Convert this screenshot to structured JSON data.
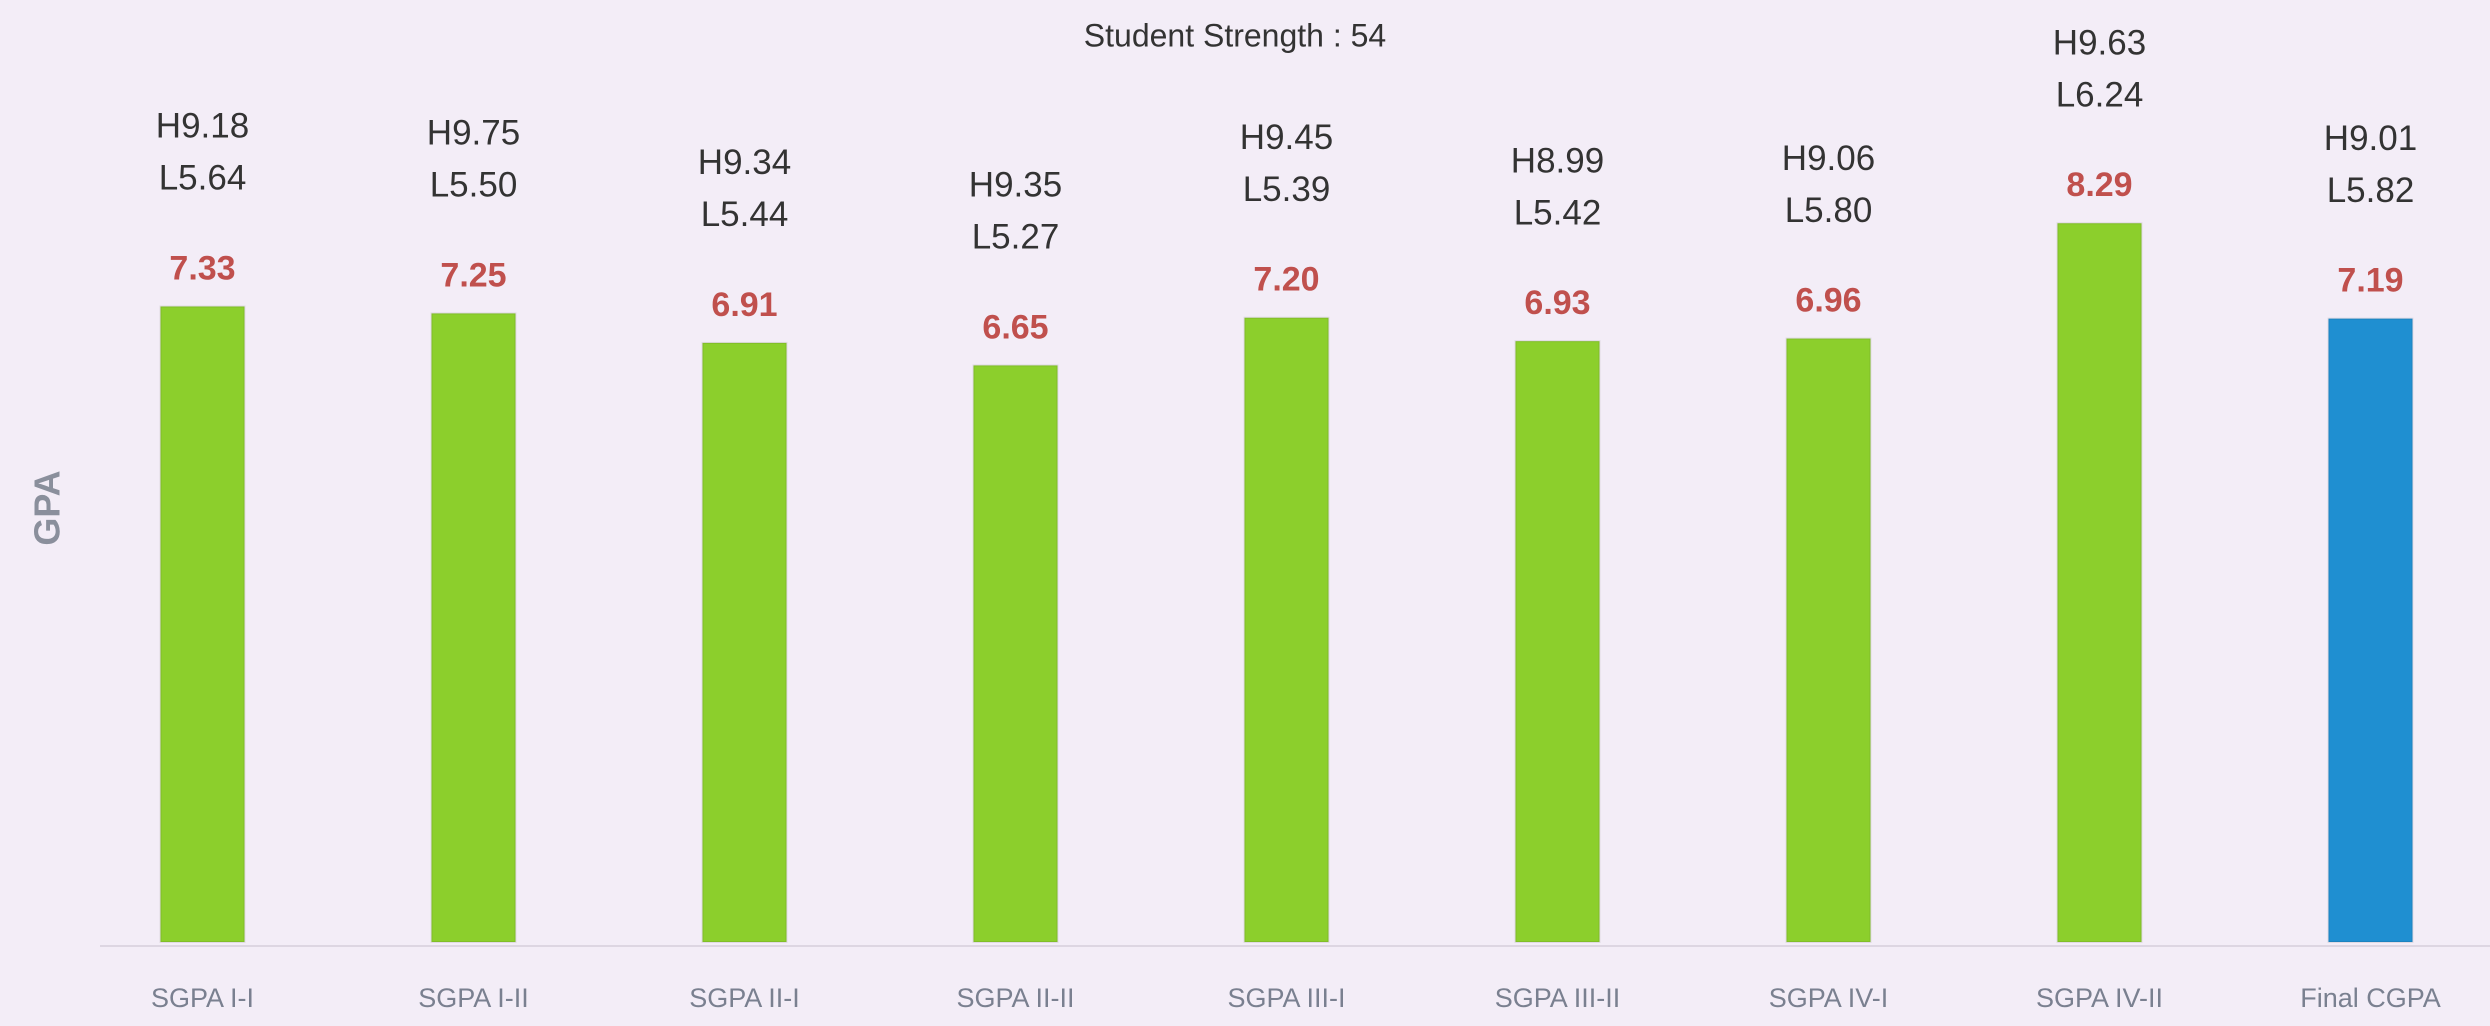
{
  "chart_data": {
    "type": "bar",
    "title": "Student Strength : 54",
    "y_label": "GPA",
    "categories": [
      "SGPA I-I",
      "SGPA I-II",
      "SGPA II-I",
      "SGPA II-II",
      "SGPA III-I",
      "SGPA III-II",
      "SGPA IV-I",
      "SGPA IV-II",
      "Final CGPA"
    ],
    "values": [
      7.33,
      7.25,
      6.91,
      6.65,
      7.2,
      6.93,
      6.96,
      8.29,
      7.19
    ],
    "value_labels": [
      "7.33",
      "7.25",
      "6.91",
      "6.65",
      "7.20",
      "6.93",
      "6.96",
      "8.29",
      "7.19"
    ],
    "high_labels": [
      "H9.18",
      "H9.75",
      "H9.34",
      "H9.35",
      "H9.45",
      "H8.99",
      "H9.06",
      "H9.63",
      "H9.01"
    ],
    "low_labels": [
      "L5.64",
      "L5.50",
      "L5.44",
      "L5.27",
      "L5.39",
      "L5.42",
      "L5.80",
      "L6.24",
      "L5.82"
    ],
    "colors": [
      "#8ccf2c",
      "#8ccf2c",
      "#8ccf2c",
      "#8ccf2c",
      "#8ccf2c",
      "#8ccf2c",
      "#8ccf2c",
      "#8ccf2c",
      "#1f8fd1"
    ],
    "ylim": [
      0,
      10
    ]
  }
}
